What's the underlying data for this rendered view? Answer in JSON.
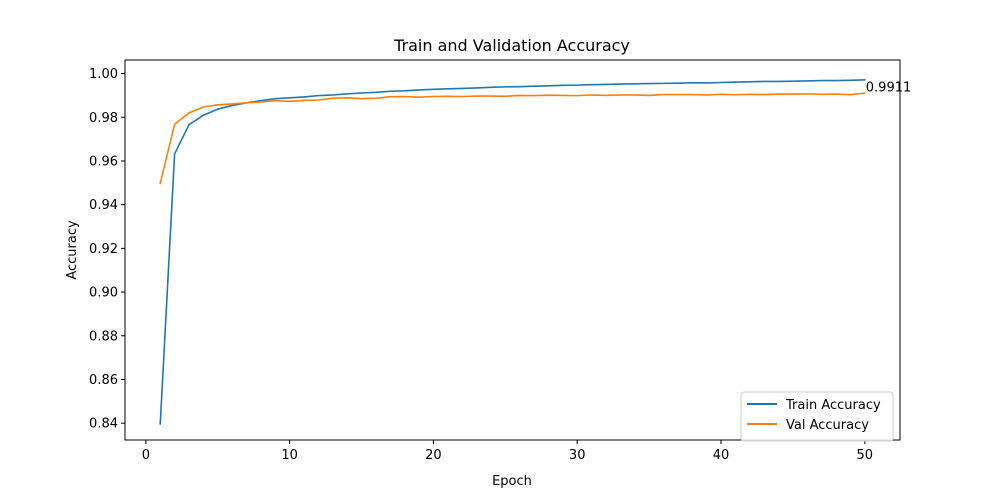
{
  "chart_data": {
    "type": "line",
    "title": "Train and Validation Accuracy",
    "xlabel": "Epoch",
    "ylabel": "Accuracy",
    "xlim": [
      -1.45,
      52.45
    ],
    "ylim": [
      0.8323,
      1.0062
    ],
    "xticks": [
      0,
      10,
      20,
      30,
      40,
      50
    ],
    "yticks": [
      0.84,
      0.86,
      0.88,
      0.9,
      0.92,
      0.94,
      0.96,
      0.98,
      1.0
    ],
    "ytick_labels": [
      "0.84",
      "0.86",
      "0.88",
      "0.90",
      "0.92",
      "0.94",
      "0.96",
      "0.98",
      "1.00"
    ],
    "grid": false,
    "legend_position": "lower-right",
    "x": [
      1,
      2,
      3,
      4,
      5,
      6,
      7,
      8,
      9,
      10,
      11,
      12,
      13,
      14,
      15,
      16,
      17,
      18,
      19,
      20,
      21,
      22,
      23,
      24,
      25,
      26,
      27,
      28,
      29,
      30,
      31,
      32,
      33,
      34,
      35,
      36,
      37,
      38,
      39,
      40,
      41,
      42,
      43,
      44,
      45,
      46,
      47,
      48,
      49,
      50
    ],
    "series": [
      {
        "name": "Train Accuracy",
        "color": "#1f77b4",
        "values": [
          0.8397,
          0.9632,
          0.9766,
          0.9809,
          0.9837,
          0.9854,
          0.9866,
          0.9876,
          0.9885,
          0.9889,
          0.9893,
          0.9899,
          0.9902,
          0.9907,
          0.9911,
          0.9914,
          0.9919,
          0.9921,
          0.9925,
          0.9928,
          0.993,
          0.9932,
          0.9934,
          0.9937,
          0.9939,
          0.994,
          0.9942,
          0.9944,
          0.9946,
          0.9947,
          0.9949,
          0.995,
          0.9952,
          0.9953,
          0.9954,
          0.9955,
          0.9956,
          0.9958,
          0.9957,
          0.9959,
          0.9961,
          0.9962,
          0.9964,
          0.9964,
          0.9965,
          0.9966,
          0.9968,
          0.9968,
          0.9969,
          0.9971
        ]
      },
      {
        "name": "Val Accuracy",
        "color": "#ff7f0e",
        "values": [
          0.9497,
          0.9768,
          0.982,
          0.9847,
          0.9857,
          0.9861,
          0.9866,
          0.987,
          0.9876,
          0.9873,
          0.9877,
          0.9879,
          0.9887,
          0.9889,
          0.9885,
          0.9887,
          0.9894,
          0.9894,
          0.9892,
          0.9895,
          0.9896,
          0.9895,
          0.9897,
          0.9897,
          0.9896,
          0.99,
          0.9899,
          0.9901,
          0.99,
          0.9899,
          0.9902,
          0.99,
          0.9902,
          0.9902,
          0.99,
          0.9904,
          0.9904,
          0.9904,
          0.9902,
          0.9905,
          0.9903,
          0.9905,
          0.9904,
          0.9906,
          0.9906,
          0.9907,
          0.9905,
          0.9906,
          0.9903,
          0.9911
        ]
      }
    ],
    "annotations": [
      {
        "text": "0.9911",
        "x": 50,
        "y": 0.9911
      }
    ]
  }
}
